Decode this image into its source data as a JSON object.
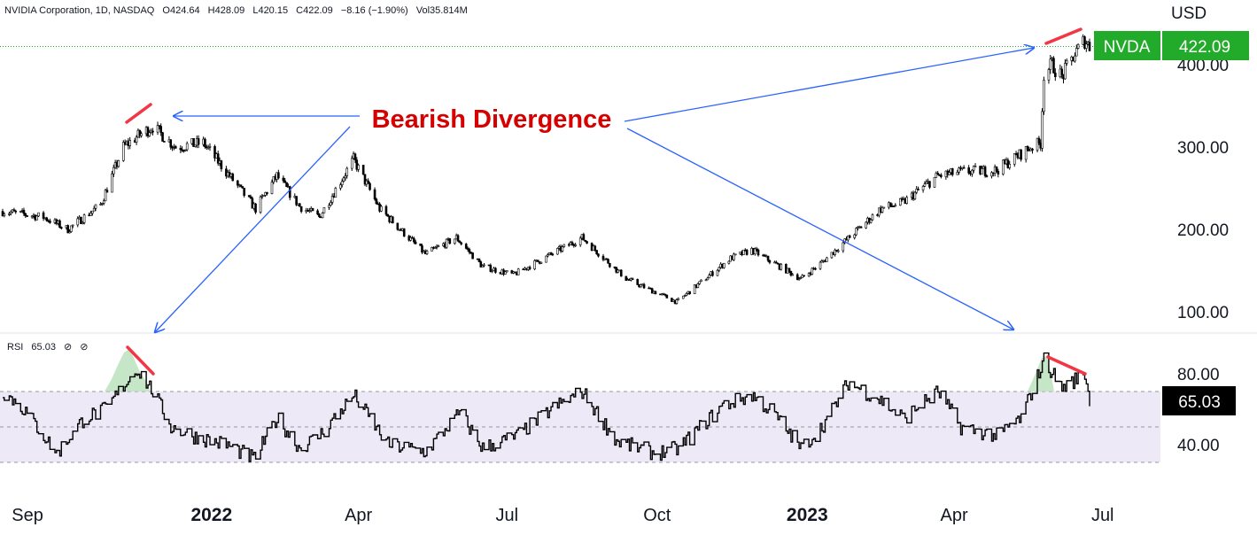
{
  "header": {
    "symbol": "NVIDIA Corporation, 1D, NASDAQ",
    "open": "O424.64",
    "high": "H428.09",
    "low": "L420.15",
    "close": "C422.09",
    "change": "−8.16 (−1.90%)",
    "volume": "Vol35.814M"
  },
  "currency": "USD",
  "price_tag": {
    "ticker": "NVDA",
    "value": "422.09",
    "color": "#22ab2a"
  },
  "rsi_header": {
    "name": "RSI",
    "value": "65.03",
    "icon1": "⊘",
    "icon2": "⊘"
  },
  "rsi_tag": {
    "value": "65.03"
  },
  "annotation": {
    "text": "Bearish Divergence",
    "color": "#d50000"
  },
  "colors": {
    "arrow": "#2962ff",
    "divergence": "#f23645",
    "candle": "#000000",
    "rsi_band": "#ede9f7"
  },
  "chart_data": [
    {
      "type": "candlestick",
      "title": "",
      "ylim": [
        75,
        450
      ],
      "y_ticks": [
        100,
        200,
        300,
        400
      ],
      "y_tick_labels": [
        "100.00",
        "200.00",
        "300.00",
        "400.00"
      ],
      "x_labels": [
        "Sep",
        "2022",
        "Apr",
        "Jul",
        "Oct",
        "2023",
        "Apr",
        "Jul"
      ],
      "x_label_dates": [
        "2021-09-01",
        "2022-01-01",
        "2022-04-01",
        "2022-07-01",
        "2022-10-01",
        "2023-01-01",
        "2023-04-01",
        "2023-07-01"
      ],
      "last_price": 422.09,
      "anchors": [
        [
          "2021-08-26",
          222
        ],
        [
          "2021-09-20",
          215
        ],
        [
          "2021-10-05",
          200
        ],
        [
          "2021-10-25",
          230
        ],
        [
          "2021-11-08",
          300
        ],
        [
          "2021-11-16",
          312
        ],
        [
          "2021-11-26",
          325
        ],
        [
          "2021-12-10",
          300
        ],
        [
          "2021-12-27",
          305
        ],
        [
          "2022-01-18",
          250
        ],
        [
          "2022-01-28",
          225
        ],
        [
          "2022-02-10",
          265
        ],
        [
          "2022-02-24",
          228
        ],
        [
          "2022-03-08",
          215
        ],
        [
          "2022-03-29",
          285
        ],
        [
          "2022-04-14",
          225
        ],
        [
          "2022-05-12",
          170
        ],
        [
          "2022-05-31",
          190
        ],
        [
          "2022-06-16",
          155
        ],
        [
          "2022-07-05",
          145
        ],
        [
          "2022-08-16",
          190
        ],
        [
          "2022-09-12",
          140
        ],
        [
          "2022-10-13",
          112
        ],
        [
          "2022-11-15",
          165
        ],
        [
          "2022-11-28",
          175
        ],
        [
          "2022-12-28",
          140
        ],
        [
          "2023-01-10",
          160
        ],
        [
          "2023-02-15",
          225
        ],
        [
          "2023-03-01",
          233
        ],
        [
          "2023-03-22",
          265
        ],
        [
          "2023-04-06",
          270
        ],
        [
          "2023-04-27",
          272
        ],
        [
          "2023-05-18",
          300
        ],
        [
          "2023-05-24",
          305
        ],
        [
          "2023-05-26",
          389
        ],
        [
          "2023-05-31",
          400
        ],
        [
          "2023-06-06",
          385
        ],
        [
          "2023-06-13",
          410
        ],
        [
          "2023-06-20",
          430
        ],
        [
          "2023-06-23",
          422.09
        ]
      ]
    },
    {
      "type": "line",
      "title": "",
      "series": [
        {
          "values_indicator": "RSI"
        }
      ],
      "ylim": [
        20,
        100
      ],
      "y_ticks": [
        40,
        80
      ],
      "y_tick_labels": [
        "40.00",
        "80.00"
      ],
      "bands": [
        30,
        50,
        70
      ],
      "last_value": 65.03,
      "anchors": [
        [
          "2021-08-26",
          70
        ],
        [
          "2021-09-08",
          60
        ],
        [
          "2021-09-28",
          35
        ],
        [
          "2021-10-15",
          55
        ],
        [
          "2021-10-28",
          60
        ],
        [
          "2021-11-16",
          83
        ],
        [
          "2021-11-26",
          70
        ],
        [
          "2021-12-07",
          50
        ],
        [
          "2021-12-20",
          45
        ],
        [
          "2022-01-10",
          40
        ],
        [
          "2022-01-27",
          32
        ],
        [
          "2022-02-10",
          55
        ],
        [
          "2022-02-24",
          38
        ],
        [
          "2022-03-08",
          45
        ],
        [
          "2022-03-29",
          68
        ],
        [
          "2022-04-19",
          40
        ],
        [
          "2022-05-12",
          36
        ],
        [
          "2022-06-02",
          58
        ],
        [
          "2022-06-16",
          38
        ],
        [
          "2022-07-07",
          45
        ],
        [
          "2022-07-28",
          60
        ],
        [
          "2022-08-16",
          70
        ],
        [
          "2022-09-06",
          42
        ],
        [
          "2022-09-30",
          35
        ],
        [
          "2022-10-14",
          38
        ],
        [
          "2022-11-10",
          62
        ],
        [
          "2022-11-28",
          68
        ],
        [
          "2022-12-12",
          57
        ],
        [
          "2022-12-28",
          38
        ],
        [
          "2023-01-10",
          50
        ],
        [
          "2023-01-26",
          75
        ],
        [
          "2023-02-15",
          65
        ],
        [
          "2023-03-01",
          55
        ],
        [
          "2023-03-22",
          70
        ],
        [
          "2023-04-05",
          50
        ],
        [
          "2023-04-27",
          45
        ],
        [
          "2023-05-12",
          55
        ],
        [
          "2023-05-26",
          88
        ],
        [
          "2023-06-06",
          72
        ],
        [
          "2023-06-20",
          80
        ],
        [
          "2023-06-23",
          65.03
        ]
      ]
    }
  ]
}
